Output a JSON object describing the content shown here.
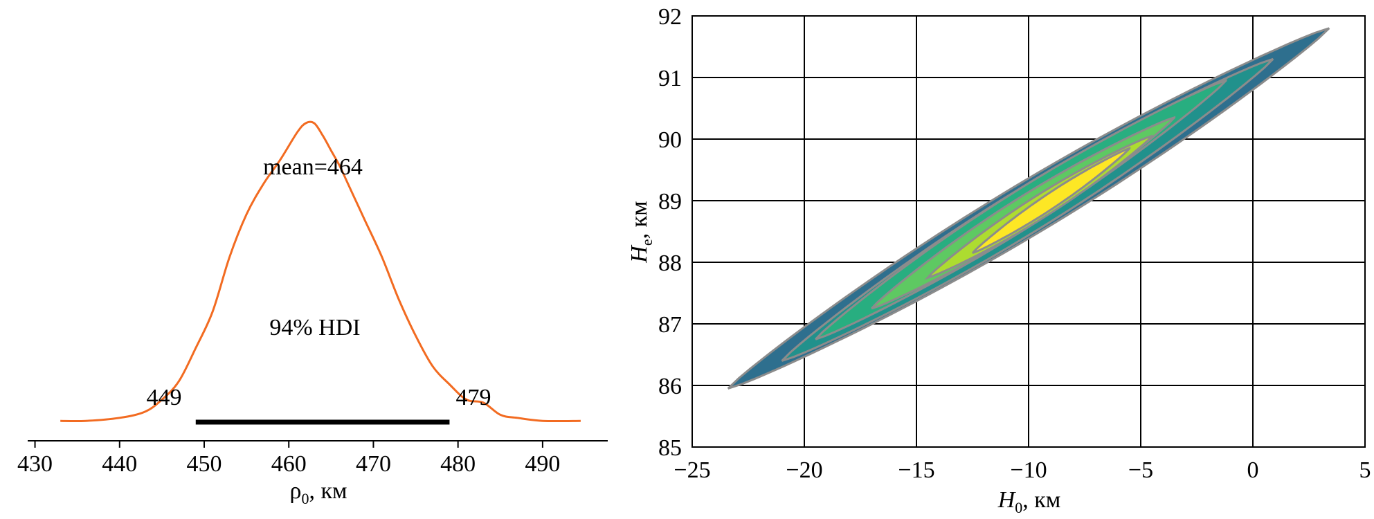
{
  "colors": {
    "density_line": "#f26b21",
    "hdi_bar": "#000000",
    "grid": "#000000",
    "contour_line": "#8c8c8c",
    "contour_fills": [
      "#2e6f8e",
      "#21918c",
      "#28ae80",
      "#5ec962",
      "#addc30",
      "#fde725"
    ]
  },
  "chart_data": [
    {
      "type": "line",
      "title": "",
      "xlabel_main": "ρ",
      "xlabel_sub": "0",
      "xlabel_unit": ", км",
      "ylabel": "",
      "xlim": [
        432,
        495
      ],
      "ylim": [
        0,
        1
      ],
      "grid": false,
      "xticks": [
        430,
        440,
        450,
        460,
        470,
        480,
        490
      ],
      "xtick_labels": [
        "430",
        "440",
        "450",
        "460",
        "470",
        "480",
        "490"
      ],
      "series": [
        {
          "x": [
            433,
            436,
            440,
            443,
            445,
            447,
            449,
            451,
            453,
            455,
            457,
            459,
            461,
            462,
            463,
            464,
            465,
            466,
            467,
            469,
            471,
            473,
            475,
            477,
            479,
            481,
            483,
            485,
            487,
            490,
            494.5
          ],
          "y": [
            0.02,
            0.02,
            0.03,
            0.05,
            0.09,
            0.15,
            0.26,
            0.38,
            0.56,
            0.7,
            0.8,
            0.88,
            0.97,
            1.0,
            1.0,
            0.96,
            0.91,
            0.86,
            0.8,
            0.68,
            0.56,
            0.42,
            0.3,
            0.2,
            0.14,
            0.09,
            0.08,
            0.04,
            0.03,
            0.02,
            0.02
          ]
        }
      ],
      "annotations": {
        "mean_label": "mean=464",
        "hdi_label": "94% HDI",
        "hdi_low_label": "449",
        "hdi_high_label": "479"
      },
      "hdi": [
        449,
        479
      ]
    },
    {
      "type": "contour",
      "title": "",
      "xlabel_main": "H",
      "xlabel_sub": "0",
      "xlabel_unit": ", км",
      "ylabel_main": "H",
      "ylabel_sub": "e",
      "ylabel_unit": ", км",
      "xlim": [
        -25,
        5
      ],
      "ylim": [
        85,
        92
      ],
      "grid": true,
      "xticks": [
        -25,
        -20,
        -15,
        -10,
        -5,
        0,
        5
      ],
      "xtick_labels": [
        "−25",
        "−20",
        "−15",
        "−10",
        "−5",
        "0",
        "5"
      ],
      "yticks": [
        85,
        86,
        87,
        88,
        89,
        90,
        91,
        92
      ],
      "ytick_labels": [
        "85",
        "86",
        "87",
        "88",
        "89",
        "90",
        "91",
        "92"
      ],
      "contours": [
        {
          "center": [
            -10,
            88.9
          ],
          "endpoints": [
            [
              -23.4,
              85.95
            ],
            [
              3.4,
              91.8
            ]
          ],
          "half_width": 0.42
        },
        {
          "center": [
            -10.3,
            88.8
          ],
          "endpoints": [
            [
              -21.0,
              86.4
            ],
            [
              0.9,
              91.3
            ]
          ],
          "half_width": 0.36
        },
        {
          "center": [
            -10.3,
            88.8
          ],
          "endpoints": [
            [
              -19.5,
              86.75
            ],
            [
              -1.2,
              90.95
            ]
          ],
          "half_width": 0.3
        },
        {
          "center": [
            -10.2,
            88.8
          ],
          "endpoints": [
            [
              -17.0,
              87.25
            ],
            [
              -3.5,
              90.35
            ]
          ],
          "half_width": 0.24
        },
        {
          "center": [
            -10.0,
            88.9
          ],
          "endpoints": [
            [
              -14.5,
              87.75
            ],
            [
              -4.5,
              90.05
            ]
          ],
          "half_width": 0.18
        },
        {
          "center": [
            -9.2,
            89.0
          ],
          "endpoints": [
            [
              -12.5,
              88.15
            ],
            [
              -5.5,
              89.85
            ]
          ],
          "half_width": 0.12
        }
      ]
    }
  ]
}
